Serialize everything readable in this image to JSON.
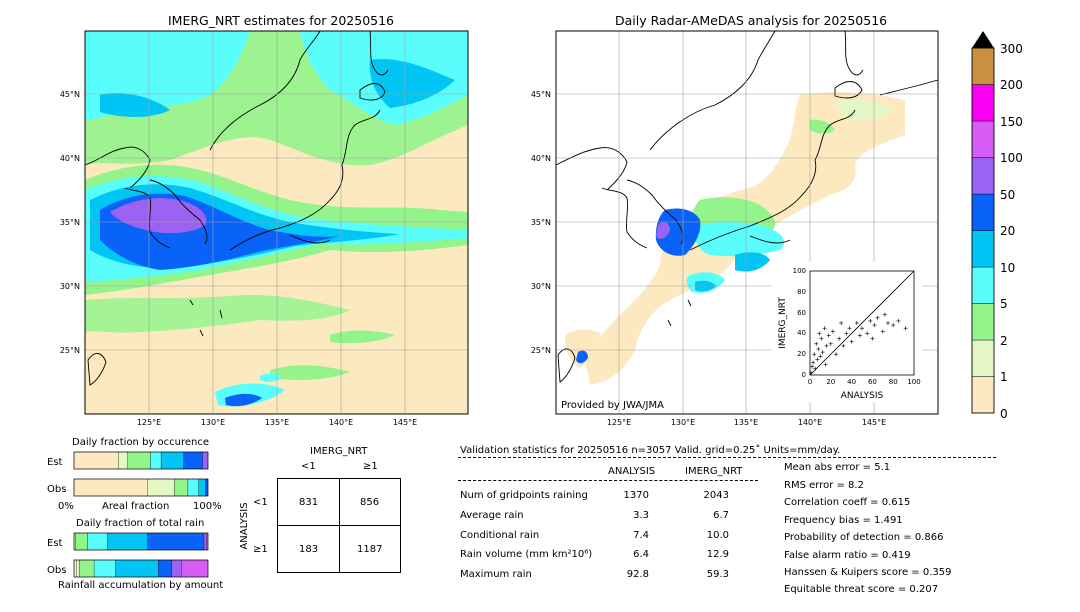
{
  "colors": {
    "bins": [
      "#fde9c0",
      "#e4f8c6",
      "#94f48c",
      "#59fdfb",
      "#00c5f5",
      "#0a63f8",
      "#9c63f3",
      "#d65cf5",
      "#fb00f5",
      "#c9903f"
    ],
    "land": "#fde9c0",
    "ocean_map": "#ffffff"
  },
  "left_map": {
    "title": "IMERG_NRT estimates for 20250516",
    "lat_labels": [
      "45°N",
      "40°N",
      "35°N",
      "30°N",
      "25°N"
    ],
    "lon_labels": [
      "125°E",
      "130°E",
      "135°E",
      "140°E",
      "145°E"
    ]
  },
  "right_map": {
    "title": "Daily Radar-AMeDAS analysis for 20250516",
    "lat_labels": [
      "45°N",
      "40°N",
      "35°N",
      "30°N",
      "25°N"
    ],
    "lon_labels": [
      "125°E",
      "130°E",
      "135°E",
      "140°E",
      "145°E"
    ],
    "credit": "Provided by JWA/JMA"
  },
  "colorbar": {
    "ticks": [
      "0",
      "1",
      "2",
      "5",
      "10",
      "20",
      "50",
      "100",
      "150",
      "200",
      "300"
    ]
  },
  "scatter": {
    "xlabel": "ANALYSIS",
    "ylabel": "IMERG_NRT",
    "ticks": [
      "0",
      "20",
      "40",
      "60",
      "80",
      "100"
    ]
  },
  "fraction_occurrence": {
    "title": "Daily fraction by occurence",
    "rows": [
      "Est",
      "Obs"
    ],
    "axis_left": "0%",
    "axis_mid": "Areal fraction",
    "axis_right": "100%"
  },
  "fraction_rain": {
    "title": "Daily fraction of total rain",
    "rows": [
      "Est",
      "Obs"
    ],
    "footer": "Rainfall accumulation by amount"
  },
  "contingency": {
    "top_title": "IMERG_NRT",
    "col_labels": [
      "<1",
      "≥1"
    ],
    "row_title": "ANALYSIS",
    "row_labels": [
      "<1",
      "≥1"
    ],
    "cells": [
      [
        "831",
        "856"
      ],
      [
        "183",
        "1187"
      ]
    ]
  },
  "validation": {
    "header": "Validation statistics for 20250516  n=3057 Valid. grid=0.25˚ Units=mm/day.",
    "col_analysis": "ANALYSIS",
    "col_imerg": "IMERG_NRT",
    "rows": [
      {
        "label": "Num of gridpoints raining",
        "analysis": "1370",
        "imerg": "2043"
      },
      {
        "label": "Average rain",
        "analysis": "3.3",
        "imerg": "6.7"
      },
      {
        "label": "Conditional rain",
        "analysis": "7.4",
        "imerg": "10.0"
      },
      {
        "label": "Rain volume (mm km²10⁶)",
        "analysis": "6.4",
        "imerg": "12.9"
      },
      {
        "label": "Maximum rain",
        "analysis": "92.8",
        "imerg": "59.3"
      }
    ],
    "scores": [
      "Mean abs error =    5.1",
      "RMS error =    8.2",
      "Correlation coeff =  0.615",
      "Frequency bias =  1.491",
      "Probability of detection =  0.866",
      "False alarm ratio =  0.419",
      "Hanssen & Kuipers score =  0.359",
      "Equitable threat score =  0.207"
    ]
  },
  "chart_data": [
    {
      "type": "heatmap",
      "title": "IMERG_NRT estimates for 20250516",
      "xlabel": "",
      "ylabel": "",
      "x_ticks": [
        "125°E",
        "130°E",
        "135°E",
        "140°E",
        "145°E"
      ],
      "y_ticks": [
        "45°N",
        "40°N",
        "35°N",
        "30°N",
        "25°N"
      ],
      "xlim": [
        120,
        150
      ],
      "ylim": [
        20,
        50
      ],
      "color_bins": [
        0,
        1,
        2,
        5,
        10,
        20,
        50,
        100,
        150,
        200,
        300
      ],
      "grid": true
    },
    {
      "type": "heatmap",
      "title": "Daily Radar-AMeDAS analysis for 20250516",
      "xlabel": "",
      "ylabel": "",
      "x_ticks": [
        "125°E",
        "130°E",
        "135°E",
        "140°E",
        "145°E"
      ],
      "y_ticks": [
        "45°N",
        "40°N",
        "35°N",
        "30°N",
        "25°N"
      ],
      "xlim": [
        120,
        150
      ],
      "ylim": [
        20,
        50
      ],
      "color_bins": [
        0,
        1,
        2,
        5,
        10,
        20,
        50,
        100,
        150,
        200,
        300
      ],
      "grid": true
    },
    {
      "type": "scatter",
      "xlabel": "ANALYSIS",
      "ylabel": "IMERG_NRT",
      "xlim": [
        0,
        100
      ],
      "ylim": [
        0,
        100
      ],
      "reference_line": "y=x",
      "points": [
        [
          1,
          2
        ],
        [
          2,
          8
        ],
        [
          3,
          12
        ],
        [
          4,
          20
        ],
        [
          5,
          6
        ],
        [
          6,
          30
        ],
        [
          7,
          15
        ],
        [
          8,
          25
        ],
        [
          9,
          40
        ],
        [
          10,
          18
        ],
        [
          11,
          35
        ],
        [
          12,
          22
        ],
        [
          14,
          45
        ],
        [
          15,
          10
        ],
        [
          16,
          28
        ],
        [
          18,
          38
        ],
        [
          20,
          30
        ],
        [
          22,
          42
        ],
        [
          25,
          20
        ],
        [
          28,
          35
        ],
        [
          30,
          50
        ],
        [
          32,
          28
        ],
        [
          35,
          40
        ],
        [
          38,
          45
        ],
        [
          40,
          32
        ],
        [
          45,
          50
        ],
        [
          48,
          38
        ],
        [
          50,
          45
        ],
        [
          55,
          40
        ],
        [
          58,
          52
        ],
        [
          60,
          35
        ],
        [
          62,
          48
        ],
        [
          65,
          55
        ],
        [
          70,
          42
        ],
        [
          72,
          58
        ],
        [
          75,
          50
        ],
        [
          80,
          48
        ],
        [
          85,
          52
        ],
        [
          92,
          45
        ]
      ]
    },
    {
      "type": "bar",
      "title": "Daily fraction by occurence",
      "xlabel": "Areal fraction",
      "categories": [
        "Est",
        "Obs"
      ],
      "series_colors": [
        "#fde9c0",
        "#e4f8c6",
        "#94f48c",
        "#59fdfb",
        "#00c5f5",
        "#0a63f8",
        "#9c63f3"
      ],
      "values": [
        [
          0.33,
          0.07,
          0.17,
          0.08,
          0.17,
          0.14,
          0.04
        ],
        [
          0.55,
          0.2,
          0.1,
          0.08,
          0.05,
          0.02,
          0.0
        ]
      ]
    },
    {
      "type": "bar",
      "title": "Daily fraction of total rain",
      "xlabel": "Rainfall accumulation by amount",
      "categories": [
        "Est",
        "Obs"
      ],
      "series_colors": [
        "#fde9c0",
        "#e4f8c6",
        "#94f48c",
        "#59fdfb",
        "#00c5f5",
        "#0a63f8",
        "#9c63f3",
        "#d65cf5"
      ],
      "values": [
        [
          0.0,
          0.01,
          0.09,
          0.15,
          0.3,
          0.42,
          0.02,
          0.01
        ],
        [
          0.02,
          0.02,
          0.11,
          0.16,
          0.32,
          0.1,
          0.07,
          0.2
        ]
      ]
    }
  ]
}
